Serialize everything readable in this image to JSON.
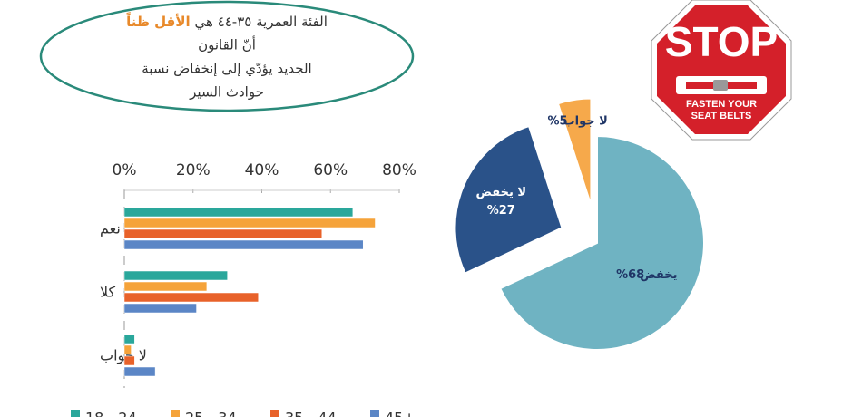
{
  "callout": {
    "line1_start": "الفئة العمرية ٣٥-٤٤ هي",
    "line1_highlight": "الأقل ظناً",
    "line2": "أنّ القانون",
    "line3": "الجديد يؤدّي إلى إنخفاض نسبة",
    "line4": "حوادث السير"
  },
  "sign": {
    "word": "STOP",
    "line1": "FASTEN YOUR",
    "line2": "SEAT BELTS"
  },
  "chart_data": [
    {
      "type": "hbar",
      "categories": [
        "نعم",
        "كلا",
        "لا جواب"
      ],
      "series": [
        {
          "name": "18 - 24",
          "color": "#2aa79b",
          "values": [
            66.5,
            30,
            3
          ]
        },
        {
          "name": "25 - 34",
          "color": "#f5a33a",
          "values": [
            73,
            24,
            2
          ]
        },
        {
          "name": "35 - 44",
          "color": "#e8622a",
          "values": [
            57.5,
            39,
            3
          ]
        },
        {
          "name": "45+",
          "color": "#5b86c6",
          "values": [
            69.5,
            21,
            9
          ]
        }
      ],
      "xlim": [
        0,
        80
      ],
      "xticks": [
        {
          "value": 0,
          "label": "0%"
        },
        {
          "value": 20,
          "label": "20%"
        },
        {
          "value": 40,
          "label": "40%"
        },
        {
          "value": 60,
          "label": "60%"
        },
        {
          "value": 80,
          "label": "80%"
        }
      ],
      "legend": "bottom"
    },
    {
      "type": "pie",
      "categories": [
        "يخفض",
        "لا يخفض",
        "لا جواب"
      ],
      "values": [
        68,
        27,
        5
      ],
      "value_labels": [
        "68%",
        "%27",
        "5%"
      ],
      "colors": [
        "#6fb3c2",
        "#2a5289",
        "#f6a94b"
      ]
    }
  ]
}
